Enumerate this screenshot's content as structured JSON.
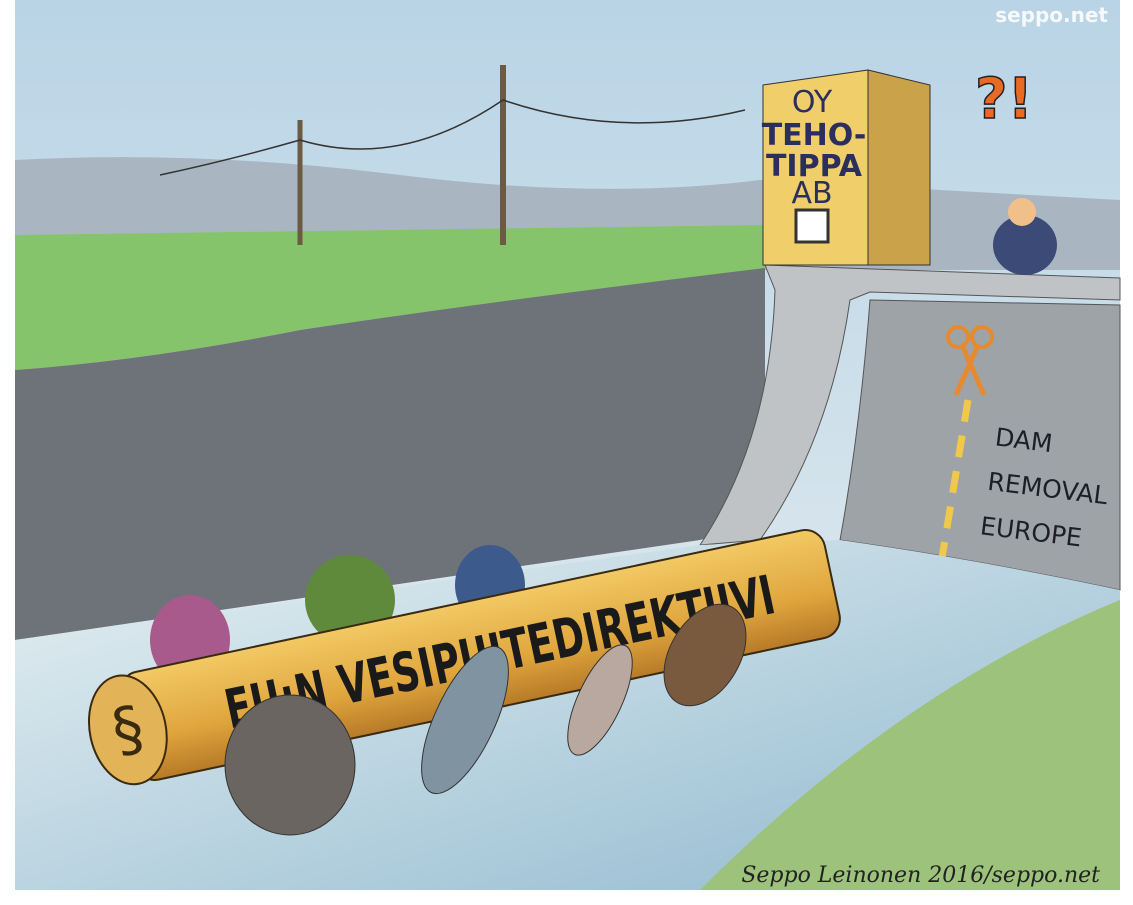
{
  "watermark": "seppo.net",
  "building": {
    "lines": [
      "OY",
      "TEHO-",
      "TIPPA",
      "AB"
    ]
  },
  "exclamation": "?!",
  "sign": {
    "lines": [
      "DAM",
      "REMOVAL",
      "EUROPE"
    ]
  },
  "log_text": "EU:N VESIPUITEDIREKTIIVI",
  "log_symbol": "§",
  "signature": "Seppo Leinonen 2016/seppo.net"
}
